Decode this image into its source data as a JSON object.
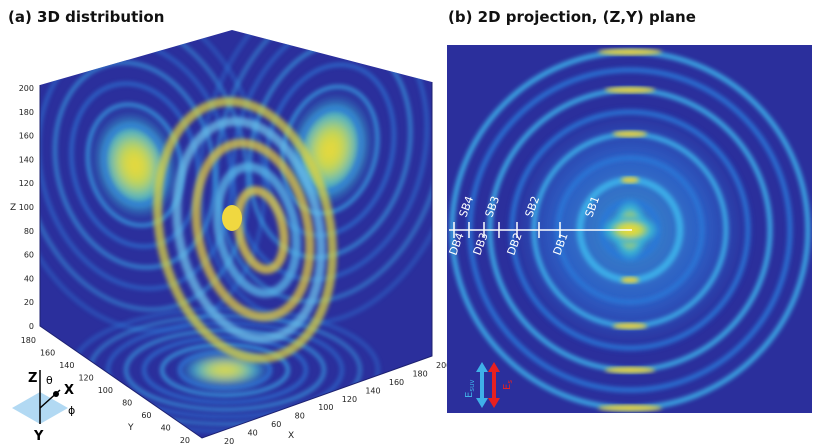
{
  "panels": [
    {
      "title": "(a) 3D distribution",
      "axes": {
        "z": {
          "label": "Z",
          "ticks": [
            0,
            20,
            40,
            60,
            80,
            100,
            120,
            140,
            160,
            180,
            200
          ]
        },
        "y": {
          "label": "Y",
          "ticks": [
            180,
            160,
            140,
            120,
            100,
            80,
            60,
            40,
            20
          ]
        },
        "x": {
          "label": "X",
          "ticks": [
            20,
            40,
            60,
            80,
            100,
            120,
            140,
            160,
            180,
            200
          ]
        }
      },
      "orientation": {
        "z": "Z",
        "x": "X",
        "y": "Y",
        "theta": "θ",
        "phi": "ϕ"
      }
    },
    {
      "title": "(b) 2D projection, (Z,Y) plane",
      "markers": {
        "top": [
          "SB4",
          "SB3",
          "SB2",
          "SB1"
        ],
        "bottom": [
          "DB4",
          "DB3",
          "DB2",
          "DB1"
        ]
      },
      "fields": [
        {
          "label": "E",
          "sub": "suv"
        },
        {
          "label": "E",
          "sub": "s"
        }
      ]
    }
  ]
}
